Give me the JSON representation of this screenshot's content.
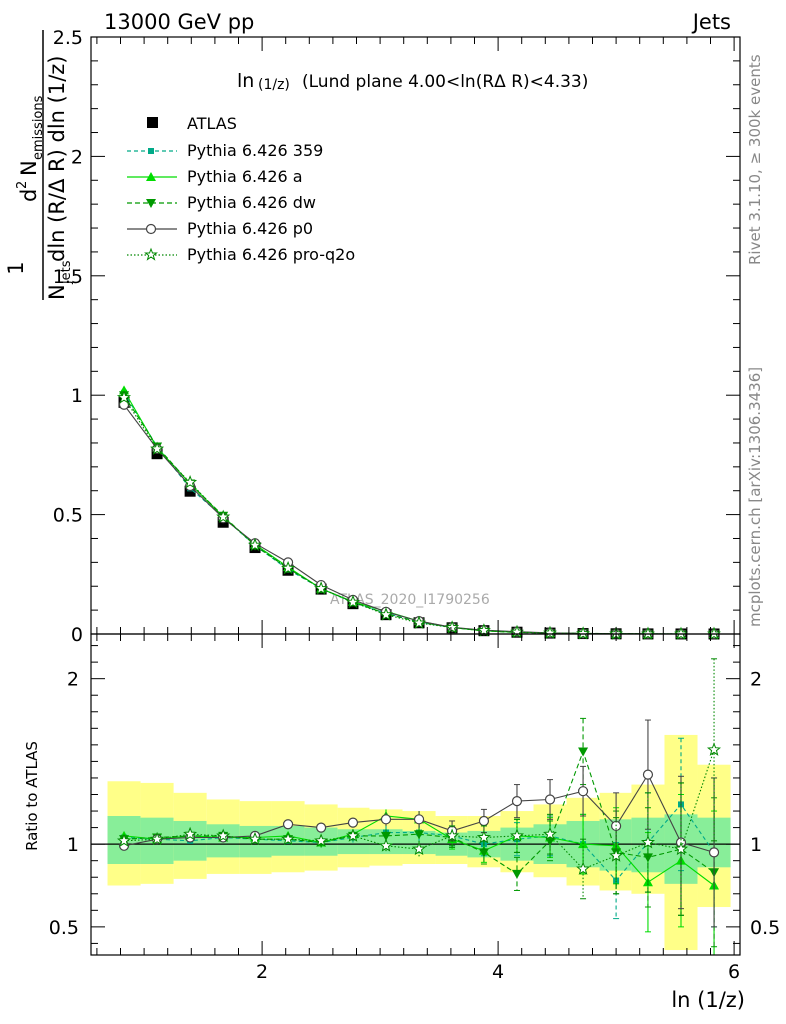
{
  "header": {
    "left": "13000 GeV pp",
    "right": "Jets",
    "side_top": "Rivet 3.1.10, ≥ 300k events",
    "side_bottom": "mcplots.cern.ch [arXiv:1306.3436]",
    "watermark": "ATLAS_2020_I1790256"
  },
  "chart_data": [
    {
      "type": "line",
      "panel": "main",
      "title": "ln(1/z) (Lund plane 4.00<ln(RΔ R)<4.33)",
      "title_main": "ln",
      "title_sub": "(1/z)",
      "title_rest": "(Lund plane 4.00<ln(RΔ R)<4.33)",
      "ylabel": "1/N_jets d²N_emissions / dln(R/ΔR) dln(1/z)",
      "ylabel_parts": {
        "one": "1",
        "num_d": "d",
        "num_exp": "2",
        "num_N": "N",
        "num_sub": "emissions",
        "den_N": "N",
        "den_sub": "jets",
        "den_rest": "dln (R/Δ R) dln (1/z)"
      },
      "xlim": [
        0.55,
        6.05
      ],
      "ylim": [
        0,
        2.5
      ],
      "yticks": [
        0,
        0.5,
        1,
        1.5,
        2,
        2.5
      ],
      "ytick_labels": [
        "0",
        "0.5",
        "1",
        "1.5",
        "2",
        "2.5"
      ],
      "x": [
        0.83,
        1.11,
        1.39,
        1.67,
        1.94,
        2.22,
        2.5,
        2.77,
        3.05,
        3.33,
        3.61,
        3.88,
        4.16,
        4.44,
        4.72,
        5.0,
        5.27,
        5.55,
        5.83
      ],
      "series": [
        {
          "name": "ATLAS",
          "color": "#000000",
          "values": [
            0.97,
            0.755,
            0.598,
            0.468,
            0.362,
            0.267,
            0.188,
            0.127,
            0.081,
            0.047,
            0.026,
            0.014,
            0.0075,
            0.0038,
            0.0019,
            0.0009,
            0.0004,
            0.0002,
            0.0001
          ]
        },
        {
          "name": "Pythia 6.426 359",
          "color": "#00aa88",
          "values": [
            1.01,
            0.785,
            0.61,
            0.49,
            0.37,
            0.27,
            0.19,
            0.132,
            0.087,
            0.05,
            0.027,
            0.014,
            0.0077,
            0.004,
            0.0019,
            0.0007,
            0.0004,
            0.0002,
            0.0001
          ]
        },
        {
          "name": "Pythia 6.426 a",
          "color": "#00dd00",
          "values": [
            1.02,
            0.78,
            0.63,
            0.49,
            0.375,
            0.28,
            0.19,
            0.135,
            0.095,
            0.054,
            0.027,
            0.0135,
            0.0079,
            0.004,
            0.0019,
            0.0009,
            0.0003,
            0.0002,
            0.0001
          ]
        },
        {
          "name": "Pythia 6.426 dw",
          "color": "#009900",
          "values": [
            1.0,
            0.785,
            0.63,
            0.495,
            0.37,
            0.275,
            0.19,
            0.134,
            0.085,
            0.05,
            0.027,
            0.013,
            0.0062,
            0.0039,
            0.003,
            0.0008,
            0.0004,
            0.0002,
            0.0001
          ]
        },
        {
          "name": "Pythia 6.426 p0",
          "color": "#444444",
          "values": [
            0.96,
            0.775,
            0.62,
            0.485,
            0.38,
            0.3,
            0.205,
            0.143,
            0.093,
            0.054,
            0.028,
            0.016,
            0.0095,
            0.0048,
            0.0025,
            0.001,
            0.0006,
            0.0002,
            0.0001
          ]
        },
        {
          "name": "Pythia 6.426 pro-q2o",
          "color": "#008800",
          "values": [
            0.99,
            0.775,
            0.635,
            0.49,
            0.372,
            0.275,
            0.19,
            0.133,
            0.081,
            0.046,
            0.027,
            0.0145,
            0.0079,
            0.0041,
            0.0016,
            0.0008,
            0.0004,
            0.0002,
            0.0001
          ]
        }
      ]
    },
    {
      "type": "line",
      "panel": "ratio",
      "ylabel": "Ratio to ATLAS",
      "xlabel": "ln (1/z)",
      "xlim": [
        0.55,
        6.05
      ],
      "ylim": [
        0.33,
        2.27
      ],
      "xticks": [
        2,
        4,
        6
      ],
      "xtick_labels": [
        "2",
        "4",
        "6"
      ],
      "yticks": [
        0.5,
        1,
        2
      ],
      "ytick_labels": [
        "0.5",
        "1",
        "2"
      ],
      "x": [
        0.83,
        1.11,
        1.39,
        1.67,
        1.94,
        2.22,
        2.5,
        2.77,
        3.05,
        3.33,
        3.61,
        3.88,
        4.16,
        4.44,
        4.72,
        5.0,
        5.27,
        5.55,
        5.83
      ],
      "bin_edges": [
        0.69,
        0.97,
        1.25,
        1.53,
        1.81,
        2.08,
        2.36,
        2.64,
        2.91,
        3.19,
        3.47,
        3.74,
        4.02,
        4.3,
        4.58,
        4.86,
        5.13,
        5.41,
        5.69,
        5.97
      ],
      "band_inner": [
        [
          0.88,
          1.17
        ],
        [
          0.88,
          1.16
        ],
        [
          0.9,
          1.14
        ],
        [
          0.92,
          1.12
        ],
        [
          0.92,
          1.11
        ],
        [
          0.93,
          1.11
        ],
        [
          0.93,
          1.1
        ],
        [
          0.94,
          1.09
        ],
        [
          0.94,
          1.09
        ],
        [
          0.94,
          1.08
        ],
        [
          0.93,
          1.07
        ],
        [
          0.92,
          1.08
        ],
        [
          0.9,
          1.1
        ],
        [
          0.88,
          1.12
        ],
        [
          0.86,
          1.14
        ],
        [
          0.84,
          1.15
        ],
        [
          0.83,
          1.16
        ],
        [
          0.76,
          1.18
        ],
        [
          0.86,
          1.16
        ]
      ],
      "band_outer": [
        [
          0.75,
          1.38
        ],
        [
          0.76,
          1.37
        ],
        [
          0.79,
          1.31
        ],
        [
          0.82,
          1.27
        ],
        [
          0.82,
          1.26
        ],
        [
          0.83,
          1.26
        ],
        [
          0.84,
          1.24
        ],
        [
          0.86,
          1.22
        ],
        [
          0.87,
          1.21
        ],
        [
          0.88,
          1.2
        ],
        [
          0.88,
          1.17
        ],
        [
          0.86,
          1.17
        ],
        [
          0.83,
          1.2
        ],
        [
          0.8,
          1.24
        ],
        [
          0.75,
          1.28
        ],
        [
          0.72,
          1.31
        ],
        [
          0.7,
          1.36
        ],
        [
          0.36,
          1.66
        ],
        [
          0.62,
          1.48
        ]
      ],
      "series": [
        {
          "name": "Pythia 6.426 359",
          "values": [
            1.04,
            1.03,
            1.02,
            1.04,
            1.03,
            1.02,
            1.01,
            1.04,
            1.07,
            1.07,
            1.05,
            1.0,
            1.03,
            1.05,
            1.0,
            0.78,
            1.01,
            1.24,
            0.95
          ],
          "err": [
            0.02,
            0.02,
            0.02,
            0.02,
            0.02,
            0.02,
            0.03,
            0.03,
            0.04,
            0.05,
            0.06,
            0.07,
            0.1,
            0.12,
            0.18,
            0.23,
            0.3,
            0.4,
            0.45
          ]
        },
        {
          "name": "Pythia 6.426 a",
          "values": [
            1.05,
            1.03,
            1.05,
            1.04,
            1.04,
            1.05,
            1.01,
            1.06,
            1.17,
            1.15,
            1.03,
            0.96,
            1.05,
            1.04,
            1.0,
            0.99,
            0.77,
            0.9,
            0.75
          ],
          "err": [
            0.02,
            0.02,
            0.02,
            0.02,
            0.02,
            0.02,
            0.03,
            0.03,
            0.04,
            0.05,
            0.06,
            0.07,
            0.1,
            0.12,
            0.18,
            0.23,
            0.3,
            0.4,
            0.45
          ]
        },
        {
          "name": "Pythia 6.426 dw",
          "values": [
            1.03,
            1.04,
            1.05,
            1.05,
            1.03,
            1.03,
            1.01,
            1.05,
            1.05,
            1.06,
            1.04,
            0.95,
            0.82,
            1.02,
            1.56,
            0.95,
            0.92,
            0.97,
            0.83
          ],
          "err": [
            0.02,
            0.02,
            0.02,
            0.02,
            0.02,
            0.02,
            0.03,
            0.03,
            0.04,
            0.05,
            0.06,
            0.07,
            0.1,
            0.12,
            0.2,
            0.25,
            0.3,
            0.4,
            0.45
          ]
        },
        {
          "name": "Pythia 6.426 p0",
          "values": [
            0.99,
            1.03,
            1.04,
            1.04,
            1.05,
            1.12,
            1.1,
            1.13,
            1.15,
            1.15,
            1.08,
            1.14,
            1.26,
            1.27,
            1.32,
            1.11,
            1.42,
            1.01,
            0.95
          ],
          "err": [
            0.02,
            0.02,
            0.02,
            0.02,
            0.02,
            0.02,
            0.03,
            0.03,
            0.04,
            0.05,
            0.06,
            0.07,
            0.1,
            0.12,
            0.15,
            0.2,
            0.33,
            0.4,
            0.45
          ]
        },
        {
          "name": "Pythia 6.426 pro-q2o",
          "values": [
            1.02,
            1.03,
            1.06,
            1.05,
            1.03,
            1.03,
            1.02,
            1.05,
            0.99,
            0.97,
            1.05,
            1.04,
            1.05,
            1.06,
            0.85,
            0.93,
            1.01,
            0.97,
            1.57
          ],
          "err": [
            0.02,
            0.02,
            0.02,
            0.02,
            0.02,
            0.02,
            0.03,
            0.03,
            0.04,
            0.05,
            0.06,
            0.07,
            0.1,
            0.12,
            0.18,
            0.23,
            0.3,
            0.4,
            0.55
          ]
        }
      ]
    }
  ]
}
